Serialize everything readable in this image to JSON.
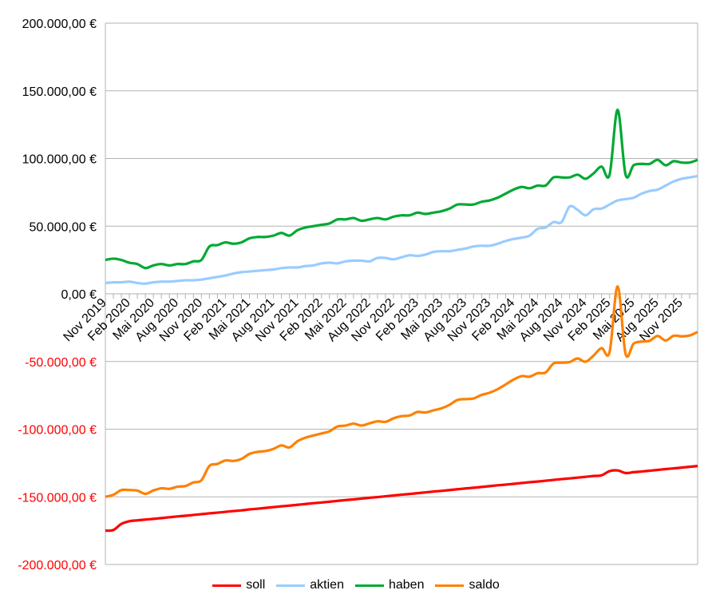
{
  "chart_data": {
    "type": "line",
    "title": "",
    "xlabel": "",
    "ylabel": "",
    "ylim": [
      -200000,
      200000
    ],
    "y_ticks": [
      200000,
      150000,
      100000,
      50000,
      0,
      -50000,
      -100000,
      -150000,
      -200000
    ],
    "y_tick_labels": [
      "200.000,00 €",
      "150.000,00 €",
      "100.000,00 €",
      "50.000,00 €",
      "0,00 €",
      "-50.000,00 €",
      "-100.000,00 €",
      "-150.000,00 €",
      "-200.000,00 €"
    ],
    "x_interval": "monthly",
    "x_tick_every": 3,
    "x_tick_labels": [
      "Nov 2019",
      "Feb 2020",
      "Mai 2020",
      "Aug 2020",
      "Nov 2020",
      "Feb 2021",
      "Mai 2021",
      "Aug 2021",
      "Nov 2021",
      "Feb 2022",
      "Mai 2022",
      "Aug 2022",
      "Nov 2022",
      "Feb 2023",
      "Mai 2023",
      "Aug 2023",
      "Nov 2023",
      "Feb 2024",
      "Mai 2024",
      "Aug 2024",
      "Nov 2024",
      "Feb 2025",
      "Mai 2025",
      "Aug 2025",
      "Nov 2025"
    ],
    "grid": true,
    "legend_position": "bottom",
    "series": [
      {
        "name": "soll",
        "color": "#ff0000",
        "values": [
          -175000,
          -174500,
          -170000,
          -168000,
          -167400,
          -166800,
          -166300,
          -165700,
          -165100,
          -164500,
          -164000,
          -163400,
          -162800,
          -162200,
          -161700,
          -161100,
          -160500,
          -160000,
          -159300,
          -158800,
          -158200,
          -157600,
          -157000,
          -156500,
          -155900,
          -155300,
          -154700,
          -154200,
          -153600,
          -153000,
          -152400,
          -151900,
          -151300,
          -150700,
          -150200,
          -149600,
          -149000,
          -148400,
          -147900,
          -147300,
          -146700,
          -146100,
          -145600,
          -145000,
          -144400,
          -143800,
          -143300,
          -142700,
          -142100,
          -141500,
          -141000,
          -140400,
          -139800,
          -139200,
          -138700,
          -138100,
          -137500,
          -136900,
          -136400,
          -135800,
          -135200,
          -134600,
          -134100,
          -131000,
          -130500,
          -132400,
          -131800,
          -131300,
          -130700,
          -130100,
          -129500,
          -129000,
          -128400,
          -127800,
          -127200
        ]
      },
      {
        "name": "aktien",
        "color": "#99ccff",
        "values": [
          8000,
          8500,
          8500,
          9000,
          8000,
          7500,
          8500,
          9000,
          9000,
          9500,
          10000,
          10000,
          10500,
          11500,
          12500,
          13500,
          15000,
          16000,
          16500,
          17000,
          17500,
          18000,
          19000,
          19500,
          19500,
          20500,
          21000,
          22500,
          23000,
          22500,
          24000,
          24500,
          24500,
          24000,
          26500,
          26500,
          25500,
          27000,
          28500,
          28000,
          29000,
          31000,
          31500,
          31500,
          32500,
          33500,
          35000,
          35500,
          35500,
          37000,
          39000,
          40500,
          41500,
          43000,
          48000,
          49000,
          53000,
          53000,
          64500,
          62000,
          58000,
          62500,
          63000,
          66000,
          69000,
          70000,
          71000,
          74000,
          76000,
          77000,
          80000,
          83000,
          85000,
          86000,
          87000
        ]
      },
      {
        "name": "haben",
        "color": "#00a933",
        "values": [
          25000,
          26000,
          25000,
          23000,
          22000,
          19000,
          21000,
          22000,
          21000,
          22000,
          22000,
          24000,
          25000,
          35000,
          36000,
          38000,
          37000,
          38000,
          41000,
          42000,
          42000,
          43000,
          45000,
          43000,
          47000,
          49000,
          50000,
          51000,
          52000,
          55000,
          55000,
          56000,
          54000,
          55000,
          56000,
          55000,
          57000,
          58000,
          58000,
          60000,
          59000,
          60000,
          61000,
          63000,
          66000,
          66000,
          66000,
          68000,
          69000,
          71000,
          74000,
          77000,
          79000,
          78000,
          80000,
          80000,
          86000,
          86000,
          86000,
          88000,
          85000,
          89000,
          94000,
          88000,
          136000,
          88000,
          95000,
          96000,
          96000,
          99000,
          95000,
          98000,
          97000,
          97000,
          99000
        ]
      },
      {
        "name": "saldo",
        "color": "#ff8000",
        "values": [
          -150000,
          -148500,
          -145000,
          -145000,
          -145400,
          -147800,
          -145300,
          -143700,
          -144100,
          -142500,
          -142000,
          -139400,
          -137800,
          -127200,
          -125700,
          -123100,
          -123500,
          -122000,
          -118300,
          -116800,
          -116200,
          -114600,
          -112000,
          -113500,
          -108900,
          -106300,
          -104700,
          -103200,
          -101600,
          -98000,
          -97400,
          -95900,
          -97300,
          -95700,
          -94200,
          -94600,
          -92000,
          -90400,
          -89900,
          -87300,
          -87700,
          -86100,
          -84600,
          -82000,
          -78400,
          -77800,
          -77300,
          -74700,
          -73100,
          -70500,
          -67000,
          -63400,
          -60800,
          -61200,
          -58700,
          -58100,
          -51500,
          -50900,
          -50400,
          -47800,
          -50200,
          -45600,
          -40100,
          -43000,
          5500,
          -44400,
          -36800,
          -35300,
          -34700,
          -31100,
          -34500,
          -31000,
          -31400,
          -30800,
          -28200
        ]
      }
    ]
  },
  "colors": {
    "negative_label": "#ff0000",
    "positive_label": "#000000",
    "grid": "#b3b3b3"
  }
}
